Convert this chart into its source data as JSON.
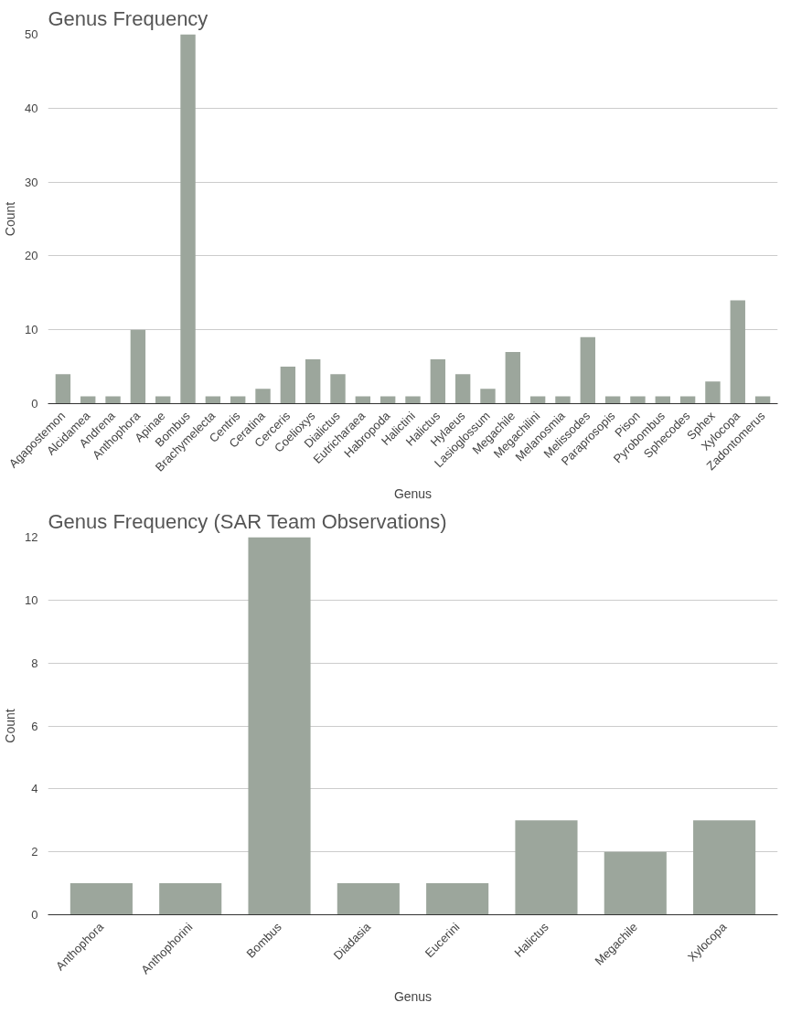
{
  "chart_data": [
    {
      "type": "bar",
      "title": "Genus Frequency",
      "xlabel": "Genus",
      "ylabel": "Count",
      "categories": [
        "Agapostemon",
        "Alcidamea",
        "Andrena",
        "Anthophora",
        "Apinae",
        "Bombus",
        "Brachymelecta",
        "Centris",
        "Ceratina",
        "Cerceris",
        "Coelioxys",
        "Dialictus",
        "Eutricharaea",
        "Habropoda",
        "Halictini",
        "Halictus",
        "Hylaeus",
        "Lasioglossum",
        "Megachile",
        "Megachilini",
        "Melanosmia",
        "Melissodes",
        "Paraprosopis",
        "Pison",
        "Pyrobombus",
        "Sphecodes",
        "Sphex",
        "Xylocopa",
        "Zadontomerus"
      ],
      "values": [
        4,
        1,
        1,
        10,
        1,
        50,
        1,
        1,
        2,
        5,
        6,
        4,
        1,
        1,
        1,
        6,
        4,
        2,
        7,
        1,
        1,
        9,
        1,
        1,
        1,
        1,
        3,
        14,
        1
      ],
      "color": "#9ca69c",
      "ylim": [
        0,
        50
      ],
      "yticks": [
        0,
        10,
        20,
        30,
        40,
        50
      ],
      "grid": "y"
    },
    {
      "type": "bar",
      "title": "Genus Frequency (SAR Team Observations)",
      "xlabel": "Genus",
      "ylabel": "Count",
      "categories": [
        "Anthophora",
        "Anthophorini",
        "Bombus",
        "Diadasia",
        "Eucerini",
        "Halictus",
        "Megachile",
        "Xylocopa"
      ],
      "values": [
        1,
        1,
        12,
        1,
        1,
        3,
        2,
        3
      ],
      "color": "#9ca69c",
      "ylim": [
        0,
        12
      ],
      "yticks": [
        0,
        2,
        4,
        6,
        8,
        10,
        12
      ],
      "grid": "y"
    }
  ]
}
